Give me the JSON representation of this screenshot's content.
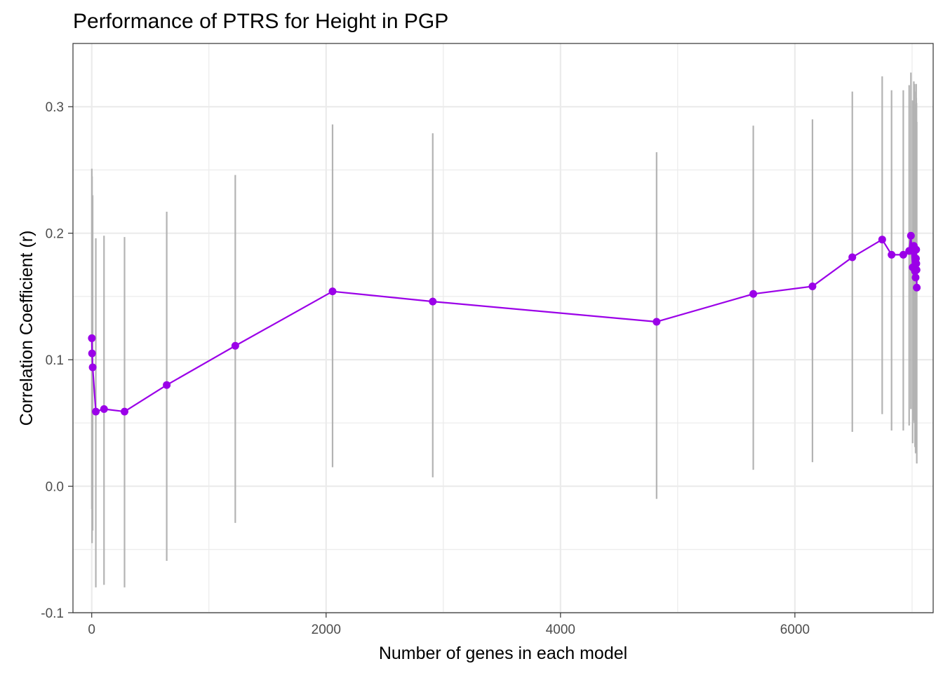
{
  "chart_data": {
    "type": "line",
    "title": "Performance of PTRS for Height in PGP",
    "xlabel": "Number of genes in each model",
    "ylabel": "Correlation Coefficient (r)",
    "xlim": [
      -160,
      7180
    ],
    "ylim": [
      -0.1,
      0.35
    ],
    "x_ticks": [
      0,
      2000,
      4000,
      6000
    ],
    "x_tick_labels": [
      "0",
      "2000",
      "4000",
      "6000"
    ],
    "y_ticks": [
      -0.1,
      0.0,
      0.1,
      0.2,
      0.3
    ],
    "y_tick_labels": [
      "-0.1",
      "0.0",
      "0.1",
      "0.2",
      "0.3"
    ],
    "grid": true,
    "colors": {
      "line": "#9B00E8",
      "points": "#9B00E8",
      "errorbars": "#B3B3B3",
      "grid": "#EBEBEB",
      "panel_border": "#333333"
    },
    "series": [
      {
        "x": [
          1,
          3,
          8,
          35,
          105,
          280,
          640,
          1225,
          2055,
          2910,
          4820,
          5645,
          6150,
          6490,
          6745,
          6825,
          6925,
          6975,
          6990,
          7005,
          7015,
          7020,
          7025,
          7030,
          7033,
          7035,
          7036,
          7038,
          7040
        ],
        "y": [
          0.117,
          0.105,
          0.094,
          0.059,
          0.061,
          0.059,
          0.08,
          0.111,
          0.154,
          0.146,
          0.13,
          0.152,
          0.158,
          0.181,
          0.195,
          0.183,
          0.183,
          0.186,
          0.198,
          0.173,
          0.19,
          0.188,
          0.17,
          0.165,
          0.18,
          0.187,
          0.176,
          0.171,
          0.157
        ],
        "lower": [
          -0.018,
          -0.045,
          -0.035,
          -0.08,
          -0.078,
          -0.08,
          -0.059,
          -0.029,
          0.015,
          0.007,
          -0.01,
          0.013,
          0.019,
          0.043,
          0.057,
          0.044,
          0.044,
          0.048,
          0.061,
          0.034,
          0.052,
          0.05,
          0.031,
          0.026,
          0.041,
          0.049,
          0.038,
          0.032,
          0.018
        ],
        "upper": [
          0.251,
          0.245,
          0.23,
          0.196,
          0.198,
          0.197,
          0.217,
          0.246,
          0.286,
          0.279,
          0.264,
          0.285,
          0.29,
          0.312,
          0.324,
          0.313,
          0.313,
          0.317,
          0.327,
          0.305,
          0.32,
          0.318,
          0.302,
          0.297,
          0.312,
          0.318,
          0.307,
          0.303,
          0.288
        ]
      }
    ]
  }
}
